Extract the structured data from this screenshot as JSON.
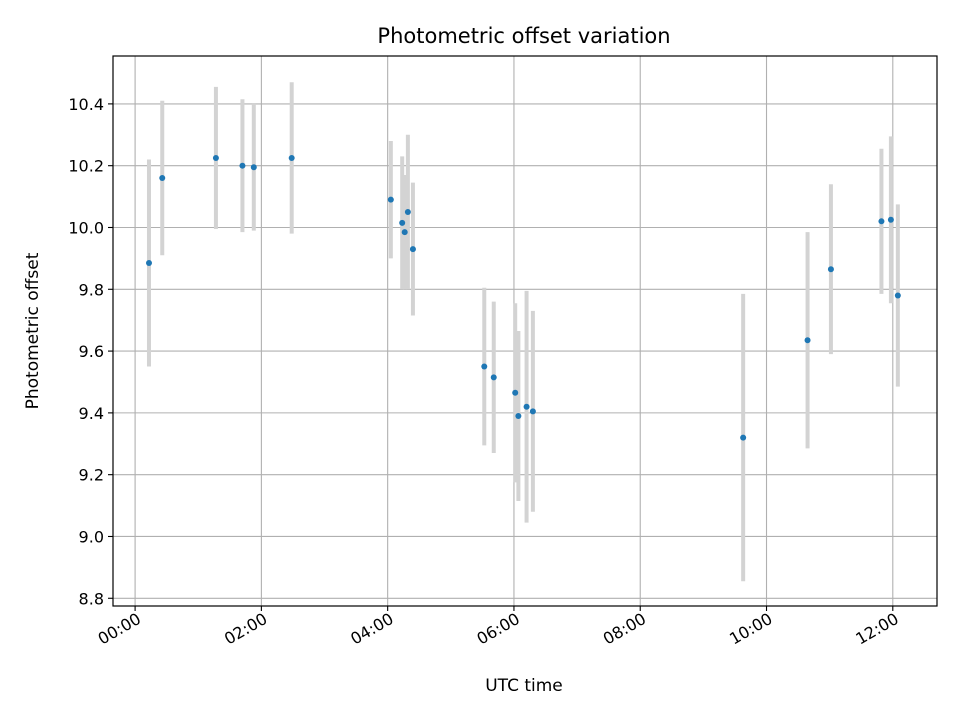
{
  "chart_data": {
    "type": "scatter",
    "title": "Photometric offset variation",
    "xlabel": "UTC time",
    "ylabel": "Photometric offset",
    "grid": true,
    "x_axis": {
      "unit": "hours",
      "range": [
        -0.35,
        12.7
      ],
      "ticks": [
        {
          "value": 0,
          "label": "00:00"
        },
        {
          "value": 2,
          "label": "02:00"
        },
        {
          "value": 4,
          "label": "04:00"
        },
        {
          "value": 6,
          "label": "06:00"
        },
        {
          "value": 8,
          "label": "08:00"
        },
        {
          "value": 10,
          "label": "10:00"
        },
        {
          "value": 12,
          "label": "12:00"
        }
      ]
    },
    "y_axis": {
      "range": [
        8.775,
        10.555
      ],
      "ticks": [
        {
          "value": 8.8,
          "label": "8.8"
        },
        {
          "value": 9.0,
          "label": "9.0"
        },
        {
          "value": 9.2,
          "label": "9.2"
        },
        {
          "value": 9.4,
          "label": "9.4"
        },
        {
          "value": 9.6,
          "label": "9.6"
        },
        {
          "value": 9.8,
          "label": "9.8"
        },
        {
          "value": 10.0,
          "label": "10.0"
        },
        {
          "value": 10.2,
          "label": "10.2"
        },
        {
          "value": 10.4,
          "label": "10.4"
        }
      ]
    },
    "colors": {
      "point": "#1f77b4",
      "errorbar": "#d3d3d3",
      "grid": "#b0b0b0"
    },
    "points": [
      {
        "time": "00:13",
        "x": 0.22,
        "y": 9.885,
        "yerr": 0.335
      },
      {
        "time": "00:26",
        "x": 0.43,
        "y": 10.16,
        "yerr": 0.25
      },
      {
        "time": "01:17",
        "x": 1.28,
        "y": 10.225,
        "yerr": 0.23
      },
      {
        "time": "01:42",
        "x": 1.7,
        "y": 10.2,
        "yerr": 0.215
      },
      {
        "time": "01:53",
        "x": 1.88,
        "y": 10.195,
        "yerr": 0.205
      },
      {
        "time": "02:29",
        "x": 2.48,
        "y": 10.225,
        "yerr": 0.245
      },
      {
        "time": "04:03",
        "x": 4.05,
        "y": 10.09,
        "yerr": 0.19
      },
      {
        "time": "04:14",
        "x": 4.23,
        "y": 10.015,
        "yerr": 0.215
      },
      {
        "time": "04:16",
        "x": 4.27,
        "y": 9.985,
        "yerr": 0.185
      },
      {
        "time": "04:19",
        "x": 4.32,
        "y": 10.05,
        "yerr": 0.25
      },
      {
        "time": "04:24",
        "x": 4.4,
        "y": 9.93,
        "yerr": 0.215
      },
      {
        "time": "05:32",
        "x": 5.53,
        "y": 9.55,
        "yerr": 0.255
      },
      {
        "time": "05:41",
        "x": 5.68,
        "y": 9.515,
        "yerr": 0.245
      },
      {
        "time": "06:01",
        "x": 6.02,
        "y": 9.465,
        "yerr": 0.29
      },
      {
        "time": "06:04",
        "x": 6.07,
        "y": 9.39,
        "yerr": 0.275
      },
      {
        "time": "06:12",
        "x": 6.2,
        "y": 9.42,
        "yerr": 0.375
      },
      {
        "time": "06:18",
        "x": 6.3,
        "y": 9.405,
        "yerr": 0.325
      },
      {
        "time": "09:38",
        "x": 9.63,
        "y": 9.32,
        "yerr": 0.465
      },
      {
        "time": "10:39",
        "x": 10.65,
        "y": 9.635,
        "yerr": 0.35
      },
      {
        "time": "11:01",
        "x": 11.02,
        "y": 9.865,
        "yerr": 0.275
      },
      {
        "time": "11:49",
        "x": 11.82,
        "y": 10.02,
        "yerr": 0.235
      },
      {
        "time": "11:58",
        "x": 11.97,
        "y": 10.025,
        "yerr": 0.27
      },
      {
        "time": "12:05",
        "x": 12.08,
        "y": 9.78,
        "yerr": 0.295
      }
    ]
  }
}
